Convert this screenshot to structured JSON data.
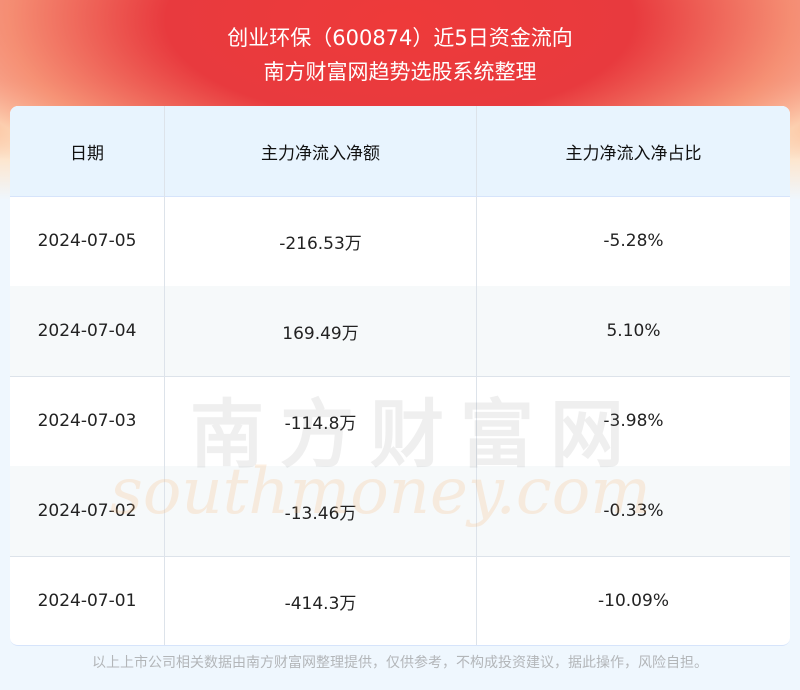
{
  "header": {
    "title": "创业环保（600874）近5日资金流向",
    "subtitle": "南方财富网趋势选股系统整理"
  },
  "table": {
    "columns": [
      "日期",
      "主力净流入净额",
      "主力净流入净占比"
    ],
    "rows": [
      {
        "date": "2024-07-05",
        "amount": "-216.53万",
        "ratio": "-5.28%"
      },
      {
        "date": "2024-07-04",
        "amount": "169.49万",
        "ratio": "5.10%"
      },
      {
        "date": "2024-07-03",
        "amount": "-114.8万",
        "ratio": "-3.98%"
      },
      {
        "date": "2024-07-02",
        "amount": "-13.46万",
        "ratio": "-0.33%"
      },
      {
        "date": "2024-07-01",
        "amount": "-414.3万",
        "ratio": "-10.09%"
      }
    ]
  },
  "watermark": {
    "cn": "南方财富网",
    "en": "southmoney.com"
  },
  "footer": {
    "disclaimer": "以上上市公司相关数据由南方财富网整理提供，仅供参考，不构成投资建议，据此操作，风险自担。"
  },
  "colors": {
    "banner": "#e8323a",
    "header_bg": "#e8f4fe",
    "page_bg": "#eff7fe"
  }
}
